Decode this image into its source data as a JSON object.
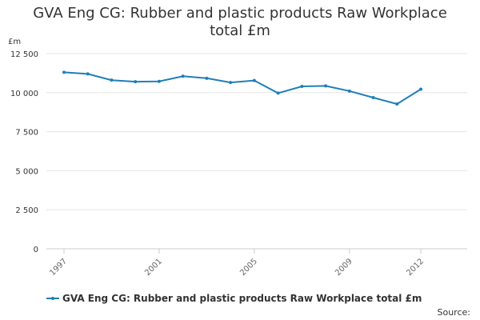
{
  "title_lines": [
    "GVA Eng CG: Rubber and plastic products Raw Workplace",
    "total £m"
  ],
  "source_label": "Source:",
  "colors": {
    "series": "#1f7fb8",
    "grid": "#e6e6e6",
    "axis": "#cccccc"
  },
  "chart_data": {
    "type": "line",
    "title": "GVA Eng CG: Rubber and plastic products Raw Workplace total £m",
    "ylabel": "£m",
    "ylim": [
      0,
      12500
    ],
    "yticks": [
      0,
      2500,
      5000,
      7500,
      10000,
      12500
    ],
    "ytick_labels": [
      "0",
      "2 500",
      "5 000",
      "7 500",
      "10 000",
      "12 500"
    ],
    "xlim": [
      1997,
      2012
    ],
    "xticks": [
      1997,
      2001,
      2005,
      2009,
      2012
    ],
    "xtick_labels": [
      "1997",
      "2001",
      "2005",
      "2009",
      "2012"
    ],
    "grid": true,
    "legend_position": "bottom-left",
    "x": [
      1997,
      1998,
      1999,
      2000,
      2001,
      2002,
      2003,
      2004,
      2005,
      2006,
      2007,
      2008,
      2009,
      2010,
      2011,
      2012
    ],
    "series": [
      {
        "name": "GVA Eng CG: Rubber and plastic products Raw Workplace total £m",
        "values": [
          11300,
          11200,
          10800,
          10700,
          10720,
          11050,
          10920,
          10650,
          10780,
          9970,
          10400,
          10430,
          10100,
          9680,
          9270,
          10220
        ]
      }
    ]
  }
}
